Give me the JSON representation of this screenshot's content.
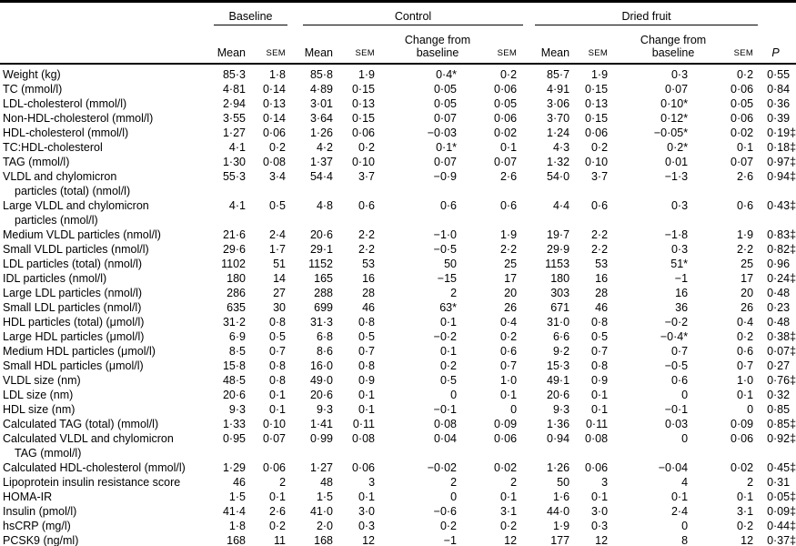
{
  "table": {
    "groups": [
      {
        "label": "Baseline"
      },
      {
        "label": "Control"
      },
      {
        "label": "Dried fruit"
      }
    ],
    "subheaders": {
      "mean": "Mean",
      "sem": "SEM",
      "change": "Change from baseline",
      "p": "P"
    },
    "rows": [
      {
        "label": "Weight (kg)",
        "cont": "",
        "values": [
          "85·3",
          "1·8",
          "85·8",
          "1·9",
          "0·4*",
          "0·2",
          "85·7",
          "1·9",
          "0·3",
          "0·2",
          "0·55"
        ]
      },
      {
        "label": "TC (mmol/l)",
        "cont": "",
        "values": [
          "4·81",
          "0·14",
          "4·89",
          "0·15",
          "0·05",
          "0·06",
          "4·91",
          "0·15",
          "0·07",
          "0·06",
          "0·84"
        ]
      },
      {
        "label": "LDL-cholesterol (mmol/l)",
        "cont": "",
        "values": [
          "2·94",
          "0·13",
          "3·01",
          "0·13",
          "0·05",
          "0·05",
          "3·06",
          "0·13",
          "0·10*",
          "0·05",
          "0·36"
        ]
      },
      {
        "label": "Non-HDL-cholesterol (mmol/l)",
        "cont": "",
        "values": [
          "3·55",
          "0·14",
          "3·64",
          "0·15",
          "0·07",
          "0·06",
          "3·70",
          "0·15",
          "0·12*",
          "0·06",
          "0·39"
        ]
      },
      {
        "label": "HDL-cholesterol (mmol/l)",
        "cont": "",
        "values": [
          "1·27",
          "0·06",
          "1·26",
          "0·06",
          "−0·03",
          "0·02",
          "1·24",
          "0·06",
          "−0·05*",
          "0·02",
          "0·19‡"
        ]
      },
      {
        "label": "TC:HDL-cholesterol",
        "cont": "",
        "values": [
          "4·1",
          "0·2",
          "4·2",
          "0·2",
          "0·1*",
          "0·1",
          "4·3",
          "0·2",
          "0·2*",
          "0·1",
          "0·18‡"
        ]
      },
      {
        "label": "TAG (mmol/l)",
        "cont": "",
        "values": [
          "1·30",
          "0·08",
          "1·37",
          "0·10",
          "0·07",
          "0·07",
          "1·32",
          "0·10",
          "0·01",
          "0·07",
          "0·97‡"
        ]
      },
      {
        "label": "VLDL and chylomicron",
        "cont": "particles (total) (nmol/l)",
        "values": [
          "55·3",
          "3·4",
          "54·4",
          "3·7",
          "−0·9",
          "2·6",
          "54·0",
          "3·7",
          "−1·3",
          "2·6",
          "0·94‡"
        ]
      },
      {
        "label": "Large VLDL and chylomicron",
        "cont": "particles (nmol/l)",
        "values": [
          "4·1",
          "0·5",
          "4·8",
          "0·6",
          "0·6",
          "0·6",
          "4·4",
          "0·6",
          "0·3",
          "0·6",
          "0·43‡"
        ]
      },
      {
        "label": "Medium VLDL particles (nmol/l)",
        "cont": "",
        "values": [
          "21·6",
          "2·4",
          "20·6",
          "2·2",
          "−1·0",
          "1·9",
          "19·7",
          "2·2",
          "−1·8",
          "1·9",
          "0·83‡"
        ]
      },
      {
        "label": "Small VLDL particles (nmol/l)",
        "cont": "",
        "values": [
          "29·6",
          "1·7",
          "29·1",
          "2·2",
          "−0·5",
          "2·2",
          "29·9",
          "2·2",
          "0·3",
          "2·2",
          "0·82‡"
        ]
      },
      {
        "label": "LDL particles (total) (nmol/l)",
        "cont": "",
        "values": [
          "1102",
          "51",
          "1152",
          "53",
          "50",
          "25",
          "1153",
          "53",
          "51*",
          "25",
          "0·96"
        ]
      },
      {
        "label": "IDL particles (nmol/l)",
        "cont": "",
        "values": [
          "180",
          "14",
          "165",
          "16",
          "−15",
          "17",
          "180",
          "16",
          "−1",
          "17",
          "0·24‡"
        ]
      },
      {
        "label": "Large LDL particles (nmol/l)",
        "cont": "",
        "values": [
          "286",
          "27",
          "288",
          "28",
          "2",
          "20",
          "303",
          "28",
          "16",
          "20",
          "0·48"
        ]
      },
      {
        "label": "Small LDL particles (nmol/l)",
        "cont": "",
        "values": [
          "635",
          "30",
          "699",
          "46",
          "63*",
          "26",
          "671",
          "46",
          "36",
          "26",
          "0·23"
        ]
      },
      {
        "label": "HDL particles (total) (μmol/l)",
        "cont": "",
        "values": [
          "31·2",
          "0·8",
          "31·3",
          "0·8",
          "0·1",
          "0·4",
          "31·0",
          "0·8",
          "−0·2",
          "0·4",
          "0·48"
        ]
      },
      {
        "label": "Large HDL particles (μmol/l)",
        "cont": "",
        "values": [
          "6·9",
          "0·5",
          "6·8",
          "0·5",
          "−0·2",
          "0·2",
          "6·6",
          "0·5",
          "−0·4*",
          "0·2",
          "0·38‡"
        ]
      },
      {
        "label": "Medium HDL particles (μmol/l)",
        "cont": "",
        "values": [
          "8·5",
          "0·7",
          "8·6",
          "0·7",
          "0·1",
          "0·6",
          "9·2",
          "0·7",
          "0·7",
          "0·6",
          "0·07‡"
        ]
      },
      {
        "label": "Small HDL particles (μmol/l)",
        "cont": "",
        "values": [
          "15·8",
          "0·8",
          "16·0",
          "0·8",
          "0·2",
          "0·7",
          "15·3",
          "0·8",
          "−0·5",
          "0·7",
          "0·27"
        ]
      },
      {
        "label": "VLDL size (nm)",
        "cont": "",
        "values": [
          "48·5",
          "0·8",
          "49·0",
          "0·9",
          "0·5",
          "1·0",
          "49·1",
          "0·9",
          "0·6",
          "1·0",
          "0·76‡"
        ]
      },
      {
        "label": "LDL size (nm)",
        "cont": "",
        "values": [
          "20·6",
          "0·1",
          "20·6",
          "0·1",
          "0",
          "0·1",
          "20·6",
          "0·1",
          "0",
          "0·1",
          "0·32"
        ]
      },
      {
        "label": "HDL size (nm)",
        "cont": "",
        "values": [
          "9·3",
          "0·1",
          "9·3",
          "0·1",
          "−0·1",
          "0",
          "9·3",
          "0·1",
          "−0·1",
          "0",
          "0·85"
        ]
      },
      {
        "label": "Calculated TAG (total) (mmol/l)",
        "cont": "",
        "values": [
          "1·33",
          "0·10",
          "1·41",
          "0·11",
          "0·08",
          "0·09",
          "1·36",
          "0·11",
          "0·03",
          "0·09",
          "0·85‡"
        ]
      },
      {
        "label": "Calculated VLDL and chylomicron",
        "cont": "TAG (mmol/l)",
        "values": [
          "0·95",
          "0·07",
          "0·99",
          "0·08",
          "0·04",
          "0·06",
          "0·94",
          "0·08",
          "0",
          "0·06",
          "0·92‡"
        ]
      },
      {
        "label": "Calculated HDL-cholesterol (mmol/l)",
        "cont": "",
        "values": [
          "1·29",
          "0·06",
          "1·27",
          "0·06",
          "−0·02",
          "0·02",
          "1·26",
          "0·06",
          "−0·04",
          "0·02",
          "0·45‡"
        ]
      },
      {
        "label": "Lipoprotein insulin resistance score",
        "cont": "",
        "values": [
          "46",
          "2",
          "48",
          "3",
          "2",
          "2",
          "50",
          "3",
          "4",
          "2",
          "0·31"
        ]
      },
      {
        "label": "HOMA-IR",
        "cont": "",
        "values": [
          "1·5",
          "0·1",
          "1·5",
          "0·1",
          "0",
          "0·1",
          "1·6",
          "0·1",
          "0·1",
          "0·1",
          "0·05‡"
        ]
      },
      {
        "label": "Insulin (pmol/l)",
        "cont": "",
        "values": [
          "41·4",
          "2·6",
          "41·0",
          "3·0",
          "−0·6",
          "3·1",
          "44·0",
          "3·0",
          "2·4",
          "3·1",
          "0·09‡"
        ]
      },
      {
        "label": "hsCRP (mg/l)",
        "cont": "",
        "values": [
          "1·8",
          "0·2",
          "2·0",
          "0·3",
          "0·2",
          "0·2",
          "1·9",
          "0·3",
          "0",
          "0·2",
          "0·44‡"
        ]
      },
      {
        "label": "PCSK9 (ng/ml)",
        "cont": "",
        "values": [
          "168",
          "11",
          "168",
          "12",
          "−1",
          "12",
          "177",
          "12",
          "8",
          "12",
          "0·37‡"
        ]
      }
    ]
  }
}
